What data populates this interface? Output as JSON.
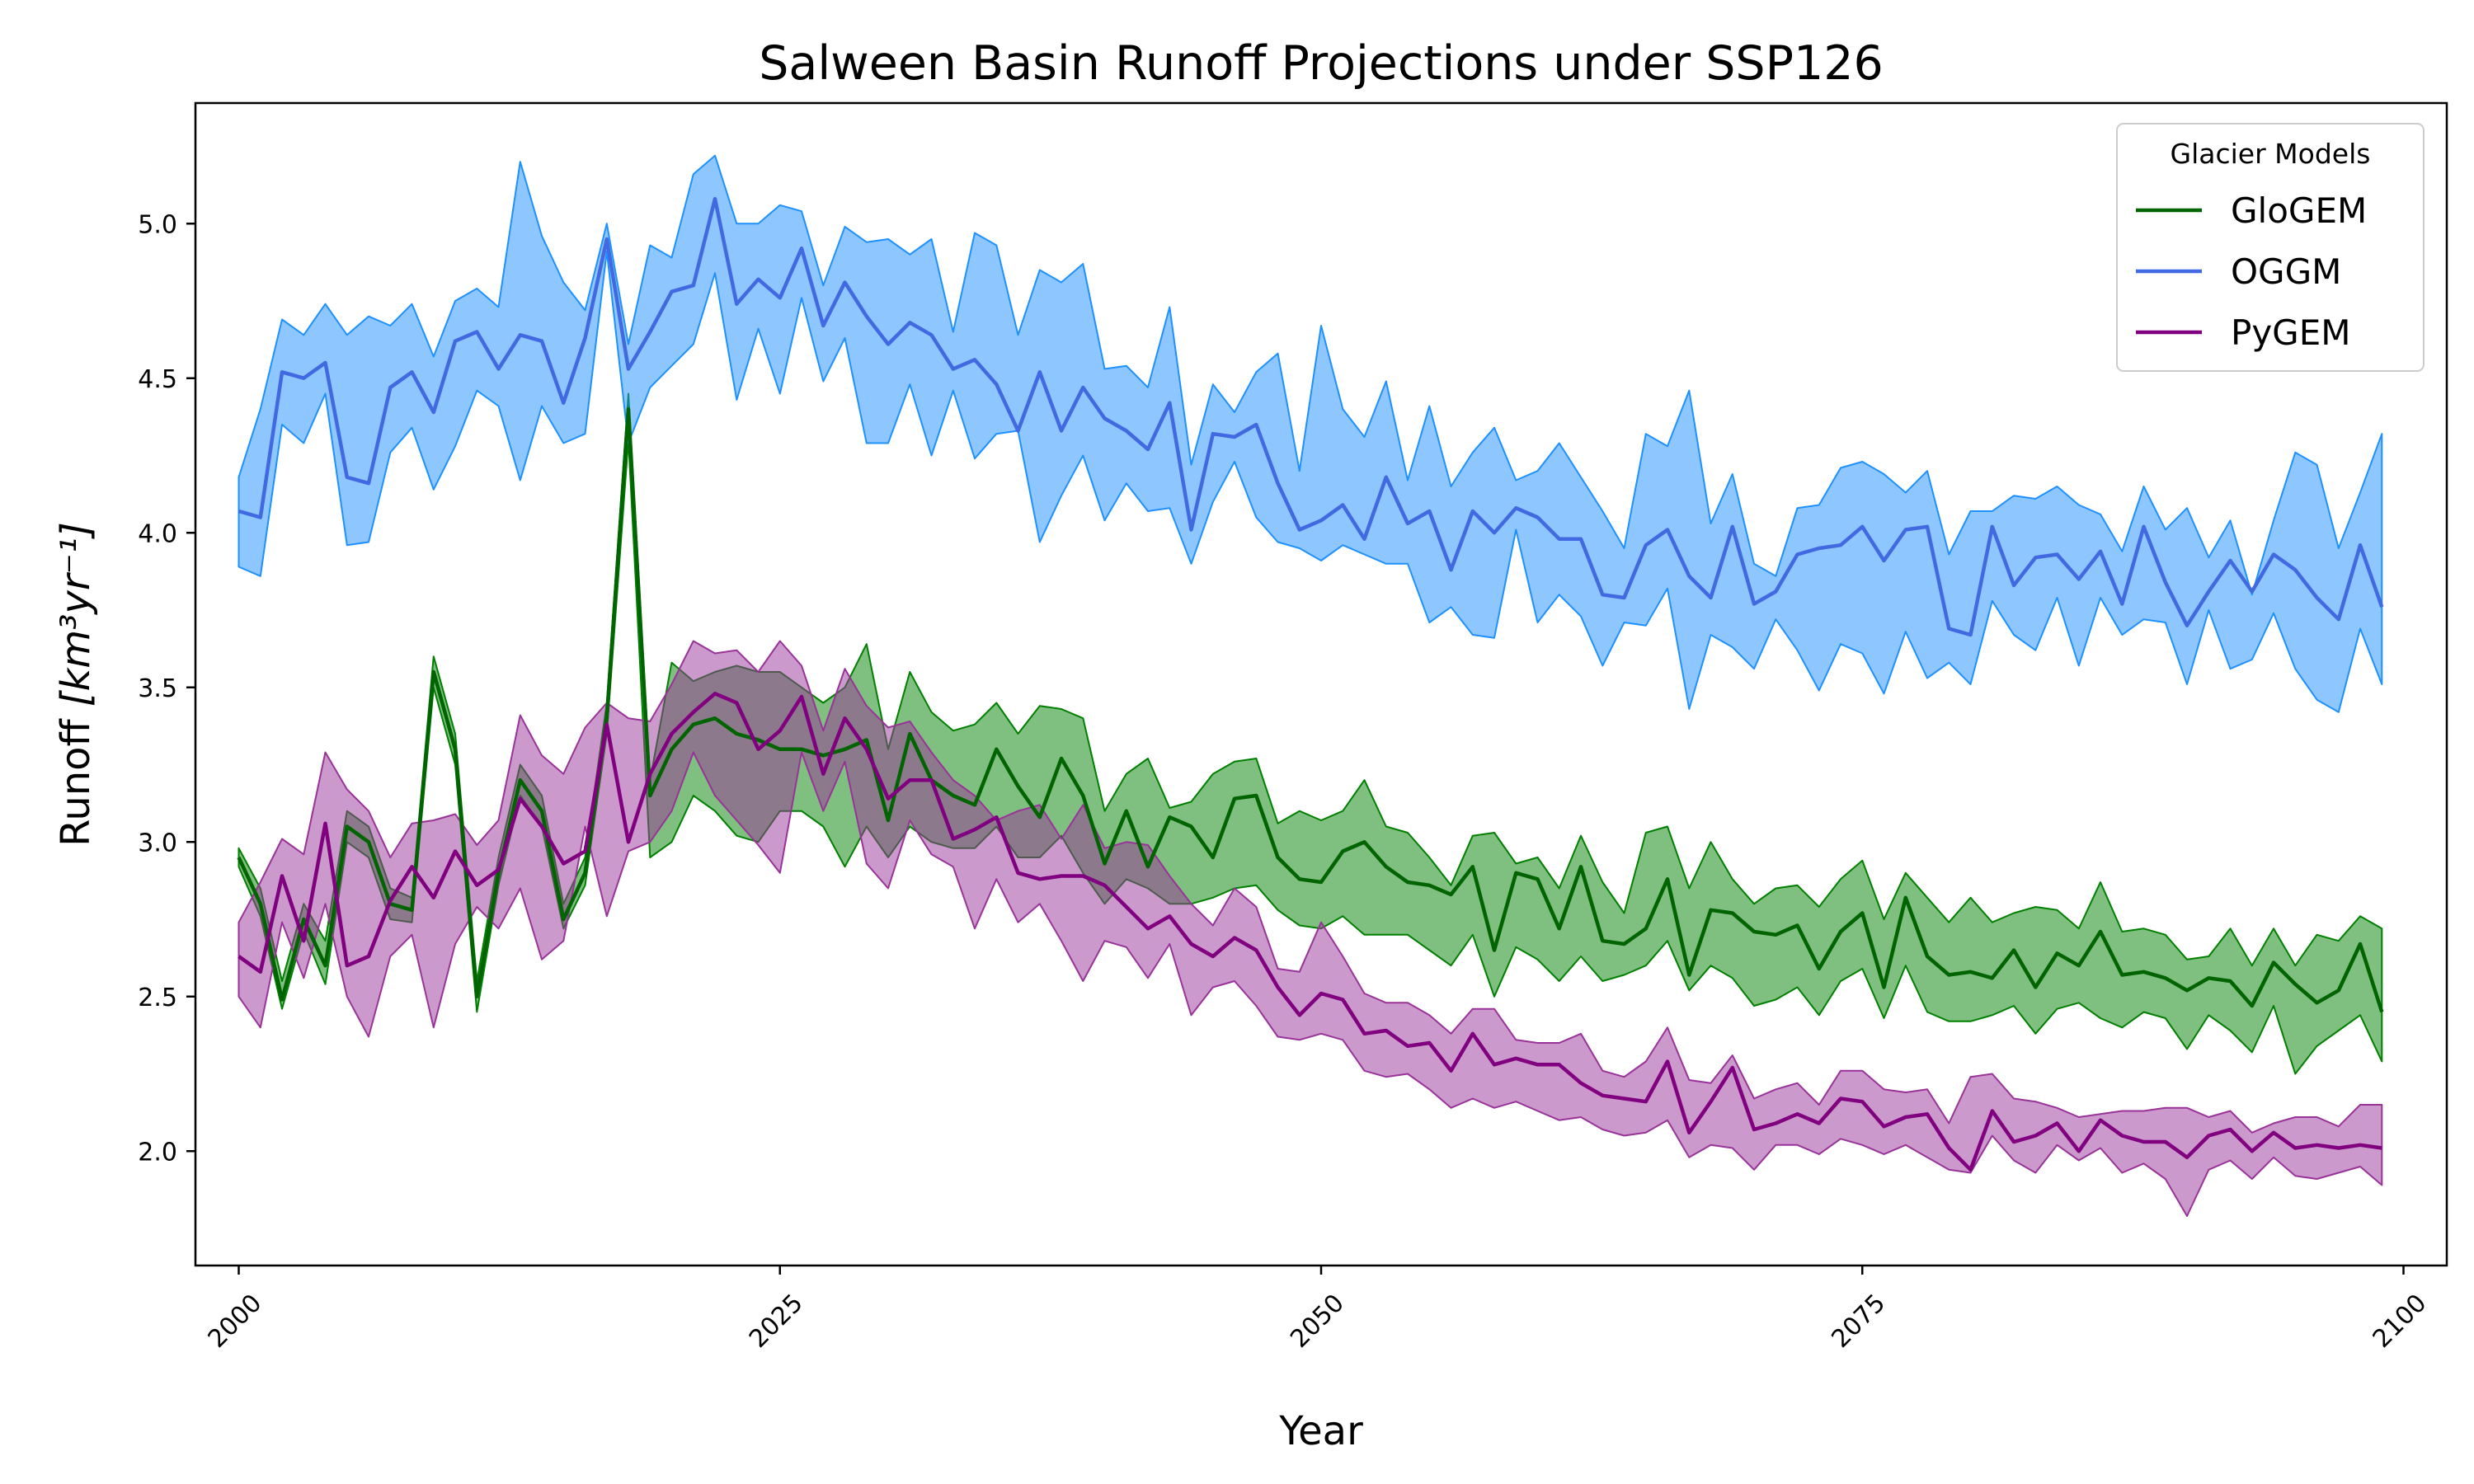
{
  "chart_data": {
    "type": "line",
    "title": "Salween Basin Runoff Projections under SSP126",
    "xlabel": "Year",
    "ylabel": "Runoff",
    "ylabel_unit": "[km³yr⁻¹]",
    "xlim": [
      1998,
      2102
    ],
    "ylim": [
      1.63,
      5.39
    ],
    "xticks": [
      2000,
      2025,
      2050,
      2075,
      2100
    ],
    "yticks": [
      2.0,
      2.5,
      3.0,
      3.5,
      4.0,
      4.5,
      5.0
    ],
    "legend": {
      "title": "Glacier Models",
      "placement": "top-right"
    },
    "x": [
      2000,
      2001,
      2002,
      2003,
      2004,
      2005,
      2006,
      2007,
      2008,
      2009,
      2010,
      2011,
      2012,
      2013,
      2014,
      2015,
      2016,
      2017,
      2018,
      2019,
      2020,
      2021,
      2022,
      2023,
      2024,
      2025,
      2026,
      2027,
      2028,
      2029,
      2030,
      2031,
      2032,
      2033,
      2034,
      2035,
      2036,
      2037,
      2038,
      2039,
      2040,
      2041,
      2042,
      2043,
      2044,
      2045,
      2046,
      2047,
      2048,
      2049,
      2050,
      2051,
      2052,
      2053,
      2054,
      2055,
      2056,
      2057,
      2058,
      2059,
      2060,
      2061,
      2062,
      2063,
      2064,
      2065,
      2066,
      2067,
      2068,
      2069,
      2070,
      2071,
      2072,
      2073,
      2074,
      2075,
      2076,
      2077,
      2078,
      2079,
      2080,
      2081,
      2082,
      2083,
      2084,
      2085,
      2086,
      2087,
      2088,
      2089,
      2090,
      2091,
      2092,
      2093,
      2094,
      2095,
      2096,
      2097,
      2098,
      2099
    ],
    "series": [
      {
        "name": "GloGEM",
        "line_color": "#006400",
        "fill_color": "#008000",
        "mean": [
          2.95,
          2.8,
          2.49,
          2.75,
          2.6,
          3.05,
          3.0,
          2.8,
          2.78,
          3.55,
          3.3,
          2.5,
          2.9,
          3.2,
          3.1,
          2.75,
          2.9,
          3.4,
          4.4,
          3.15,
          3.3,
          3.38,
          3.4,
          3.35,
          3.33,
          3.3,
          3.3,
          3.28,
          3.3,
          3.33,
          3.07,
          3.35,
          3.2,
          3.15,
          3.12,
          3.3,
          3.18,
          3.08,
          3.27,
          3.15,
          2.93,
          3.1,
          2.92,
          3.08,
          3.05,
          2.95,
          3.14,
          3.15,
          2.95,
          2.88,
          2.87,
          2.97,
          3.0,
          2.92,
          2.87,
          2.86,
          2.83,
          2.92,
          2.65,
          2.9,
          2.88,
          2.72,
          2.92,
          2.68,
          2.67,
          2.72,
          2.88,
          2.57,
          2.78,
          2.77,
          2.71,
          2.7,
          2.73,
          2.59,
          2.71,
          2.77,
          2.53,
          2.82,
          2.63,
          2.57,
          2.58,
          2.56,
          2.65,
          2.53,
          2.64,
          2.6,
          2.71,
          2.57,
          2.58,
          2.56,
          2.52,
          2.56,
          2.55,
          2.47,
          2.61,
          2.54,
          2.48,
          2.52,
          2.67,
          2.45
        ],
        "upper": [
          2.98,
          2.85,
          2.55,
          2.8,
          2.68,
          3.1,
          3.05,
          2.85,
          2.82,
          3.6,
          3.35,
          2.55,
          2.95,
          3.25,
          3.15,
          2.8,
          2.95,
          3.45,
          4.45,
          3.2,
          3.58,
          3.52,
          3.55,
          3.57,
          3.55,
          3.55,
          3.5,
          3.45,
          3.5,
          3.64,
          3.3,
          3.55,
          3.42,
          3.36,
          3.38,
          3.45,
          3.35,
          3.44,
          3.43,
          3.4,
          3.1,
          3.22,
          3.27,
          3.11,
          3.13,
          3.22,
          3.26,
          3.27,
          3.06,
          3.1,
          3.07,
          3.1,
          3.2,
          3.05,
          3.03,
          2.95,
          2.86,
          3.02,
          3.03,
          2.93,
          2.95,
          2.85,
          3.02,
          2.87,
          2.77,
          3.03,
          3.05,
          2.85,
          3.0,
          2.88,
          2.8,
          2.85,
          2.86,
          2.79,
          2.88,
          2.94,
          2.75,
          2.9,
          2.82,
          2.74,
          2.82,
          2.74,
          2.77,
          2.79,
          2.78,
          2.72,
          2.87,
          2.71,
          2.72,
          2.7,
          2.62,
          2.63,
          2.72,
          2.6,
          2.72,
          2.6,
          2.7,
          2.68,
          2.76,
          2.72
        ],
        "lower": [
          2.92,
          2.76,
          2.46,
          2.71,
          2.54,
          3.0,
          2.95,
          2.75,
          2.74,
          3.5,
          3.25,
          2.45,
          2.86,
          3.15,
          3.05,
          2.72,
          2.86,
          3.35,
          4.3,
          2.95,
          3.0,
          3.15,
          3.1,
          3.02,
          3.0,
          3.1,
          3.1,
          3.05,
          2.92,
          3.05,
          2.95,
          3.05,
          3.0,
          2.98,
          2.98,
          3.05,
          2.95,
          2.95,
          3.02,
          2.9,
          2.8,
          2.88,
          2.85,
          2.8,
          2.8,
          2.82,
          2.85,
          2.86,
          2.78,
          2.73,
          2.72,
          2.76,
          2.7,
          2.7,
          2.7,
          2.65,
          2.6,
          2.7,
          2.5,
          2.66,
          2.62,
          2.55,
          2.63,
          2.55,
          2.57,
          2.6,
          2.68,
          2.52,
          2.6,
          2.56,
          2.47,
          2.49,
          2.53,
          2.44,
          2.55,
          2.59,
          2.43,
          2.6,
          2.45,
          2.42,
          2.42,
          2.44,
          2.47,
          2.38,
          2.46,
          2.48,
          2.43,
          2.4,
          2.45,
          2.43,
          2.33,
          2.44,
          2.39,
          2.32,
          2.47,
          2.25,
          2.34,
          2.39,
          2.44,
          2.29
        ]
      },
      {
        "name": "OGGM",
        "line_color": "#4169E1",
        "fill_color": "#1E90FF",
        "mean": [
          4.07,
          4.05,
          4.52,
          4.5,
          4.55,
          4.18,
          4.16,
          4.47,
          4.52,
          4.39,
          4.62,
          4.65,
          4.53,
          4.64,
          4.62,
          4.42,
          4.63,
          4.95,
          4.53,
          4.65,
          4.78,
          4.8,
          5.08,
          4.74,
          4.82,
          4.76,
          4.92,
          4.67,
          4.81,
          4.7,
          4.61,
          4.68,
          4.64,
          4.53,
          4.56,
          4.48,
          4.33,
          4.52,
          4.33,
          4.47,
          4.37,
          4.33,
          4.27,
          4.42,
          4.01,
          4.32,
          4.31,
          4.35,
          4.16,
          4.01,
          4.04,
          4.09,
          3.98,
          4.18,
          4.03,
          4.07,
          3.88,
          4.07,
          4.0,
          4.08,
          4.05,
          3.98,
          3.98,
          3.8,
          3.79,
          3.96,
          4.01,
          3.86,
          3.79,
          4.02,
          3.77,
          3.81,
          3.93,
          3.95,
          3.96,
          4.02,
          3.91,
          4.01,
          4.02,
          3.69,
          3.67,
          4.02,
          3.83,
          3.92,
          3.93,
          3.85,
          3.94,
          3.77,
          4.02,
          3.84,
          3.7,
          3.81,
          3.91,
          3.81,
          3.93,
          3.88,
          3.79,
          3.72,
          3.96,
          3.76
        ],
        "upper": [
          4.18,
          4.4,
          4.69,
          4.64,
          4.74,
          4.64,
          4.7,
          4.67,
          4.74,
          4.57,
          4.75,
          4.79,
          4.73,
          5.2,
          4.96,
          4.81,
          4.72,
          5.0,
          4.61,
          4.93,
          4.89,
          5.16,
          5.22,
          5.0,
          5.0,
          5.06,
          5.04,
          4.8,
          4.99,
          4.94,
          4.95,
          4.9,
          4.95,
          4.65,
          4.97,
          4.93,
          4.64,
          4.85,
          4.81,
          4.87,
          4.53,
          4.54,
          4.47,
          4.73,
          4.22,
          4.48,
          4.39,
          4.52,
          4.58,
          4.2,
          4.67,
          4.4,
          4.31,
          4.49,
          4.17,
          4.41,
          4.15,
          4.26,
          4.34,
          4.17,
          4.2,
          4.29,
          4.18,
          4.07,
          3.95,
          4.32,
          4.28,
          4.46,
          4.03,
          4.19,
          3.9,
          3.86,
          4.08,
          4.09,
          4.21,
          4.23,
          4.19,
          4.13,
          4.2,
          3.93,
          4.07,
          4.07,
          4.12,
          4.11,
          4.15,
          4.09,
          4.06,
          3.94,
          4.15,
          4.01,
          4.08,
          3.92,
          4.04,
          3.8,
          4.04,
          4.26,
          4.22,
          3.95,
          4.13,
          4.32
        ],
        "lower": [
          3.89,
          3.86,
          4.35,
          4.29,
          4.45,
          3.96,
          3.97,
          4.26,
          4.34,
          4.14,
          4.28,
          4.46,
          4.41,
          4.17,
          4.41,
          4.29,
          4.32,
          4.91,
          4.29,
          4.47,
          4.54,
          4.61,
          4.84,
          4.43,
          4.66,
          4.45,
          4.76,
          4.49,
          4.63,
          4.29,
          4.29,
          4.48,
          4.25,
          4.46,
          4.24,
          4.32,
          4.33,
          3.97,
          4.12,
          4.25,
          4.04,
          4.16,
          4.07,
          4.08,
          3.9,
          4.1,
          4.23,
          4.05,
          3.97,
          3.95,
          3.91,
          3.96,
          3.93,
          3.9,
          3.9,
          3.71,
          3.76,
          3.67,
          3.66,
          4.01,
          3.71,
          3.8,
          3.73,
          3.57,
          3.71,
          3.7,
          3.82,
          3.43,
          3.67,
          3.63,
          3.56,
          3.72,
          3.62,
          3.49,
          3.64,
          3.61,
          3.48,
          3.68,
          3.53,
          3.58,
          3.51,
          3.78,
          3.67,
          3.62,
          3.79,
          3.57,
          3.79,
          3.67,
          3.72,
          3.71,
          3.51,
          3.75,
          3.56,
          3.59,
          3.74,
          3.56,
          3.46,
          3.42,
          3.69,
          3.51
        ]
      },
      {
        "name": "PyGEM",
        "line_color": "#800080",
        "fill_color": "#993399",
        "mean": [
          2.63,
          2.58,
          2.89,
          2.68,
          3.06,
          2.6,
          2.63,
          2.81,
          2.92,
          2.82,
          2.97,
          2.86,
          2.91,
          3.14,
          3.05,
          2.93,
          2.97,
          3.38,
          3.0,
          3.22,
          3.35,
          3.42,
          3.48,
          3.45,
          3.3,
          3.36,
          3.47,
          3.22,
          3.4,
          3.3,
          3.14,
          3.2,
          3.2,
          3.01,
          3.04,
          3.08,
          2.9,
          2.88,
          2.89,
          2.89,
          2.86,
          2.79,
          2.72,
          2.76,
          2.67,
          2.63,
          2.69,
          2.65,
          2.53,
          2.44,
          2.51,
          2.49,
          2.38,
          2.39,
          2.34,
          2.35,
          2.26,
          2.38,
          2.28,
          2.3,
          2.28,
          2.28,
          2.22,
          2.18,
          2.17,
          2.16,
          2.29,
          2.06,
          2.16,
          2.27,
          2.07,
          2.09,
          2.12,
          2.09,
          2.17,
          2.16,
          2.08,
          2.11,
          2.12,
          2.01,
          1.94,
          2.13,
          2.03,
          2.05,
          2.09,
          2.0,
          2.1,
          2.05,
          2.03,
          2.03,
          1.98,
          2.05,
          2.07,
          2.0,
          2.06,
          2.01,
          2.02,
          2.01,
          2.02,
          2.01
        ],
        "upper": [
          2.74,
          2.87,
          3.01,
          2.96,
          3.29,
          3.17,
          3.1,
          2.95,
          3.06,
          3.07,
          3.09,
          2.99,
          3.07,
          3.41,
          3.28,
          3.22,
          3.37,
          3.45,
          3.4,
          3.39,
          3.51,
          3.65,
          3.61,
          3.62,
          3.55,
          3.65,
          3.57,
          3.36,
          3.56,
          3.44,
          3.37,
          3.39,
          3.29,
          3.2,
          3.15,
          3.07,
          3.1,
          3.12,
          3.01,
          3.12,
          2.98,
          3.0,
          2.99,
          2.89,
          2.8,
          2.73,
          2.85,
          2.79,
          2.59,
          2.58,
          2.74,
          2.63,
          2.51,
          2.48,
          2.48,
          2.44,
          2.38,
          2.46,
          2.46,
          2.36,
          2.35,
          2.35,
          2.38,
          2.26,
          2.24,
          2.29,
          2.4,
          2.23,
          2.22,
          2.31,
          2.17,
          2.2,
          2.22,
          2.15,
          2.26,
          2.26,
          2.2,
          2.19,
          2.2,
          2.09,
          2.24,
          2.25,
          2.17,
          2.16,
          2.14,
          2.11,
          2.12,
          2.13,
          2.13,
          2.14,
          2.14,
          2.11,
          2.13,
          2.06,
          2.09,
          2.11,
          2.11,
          2.08,
          2.15,
          2.15
        ],
        "lower": [
          2.5,
          2.4,
          2.74,
          2.56,
          2.8,
          2.5,
          2.37,
          2.63,
          2.7,
          2.4,
          2.67,
          2.79,
          2.72,
          2.85,
          2.62,
          2.68,
          3.05,
          2.76,
          2.97,
          3.0,
          3.1,
          3.29,
          3.15,
          3.07,
          2.99,
          2.9,
          3.29,
          3.1,
          3.26,
          2.93,
          2.85,
          3.07,
          2.96,
          2.92,
          2.72,
          2.88,
          2.74,
          2.8,
          2.68,
          2.55,
          2.68,
          2.66,
          2.56,
          2.67,
          2.44,
          2.53,
          2.55,
          2.47,
          2.37,
          2.36,
          2.38,
          2.36,
          2.26,
          2.24,
          2.25,
          2.2,
          2.14,
          2.17,
          2.14,
          2.16,
          2.13,
          2.1,
          2.11,
          2.07,
          2.05,
          2.06,
          2.1,
          1.98,
          2.02,
          2.01,
          1.94,
          2.02,
          2.02,
          1.99,
          2.04,
          2.02,
          1.99,
          2.02,
          1.98,
          1.94,
          1.93,
          2.05,
          1.97,
          1.93,
          2.02,
          1.97,
          2.01,
          1.93,
          1.96,
          1.91,
          1.79,
          1.94,
          1.97,
          1.91,
          1.98,
          1.92,
          1.91,
          1.93,
          1.95,
          1.89
        ]
      }
    ]
  }
}
